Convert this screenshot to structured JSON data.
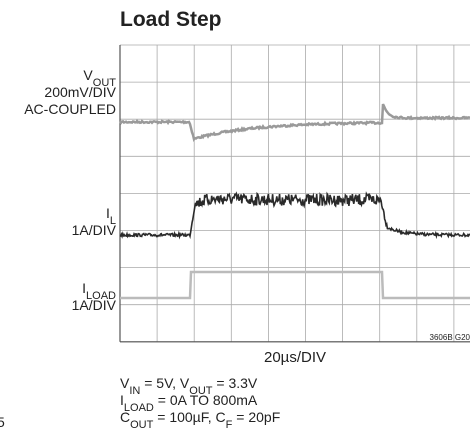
{
  "chart_data": {
    "type": "oscilloscope",
    "title": "Load Step",
    "channels": [
      {
        "name": {
          "main": "V",
          "sub": "OUT"
        },
        "scale": "200mV/DIV",
        "coupling": "AC-COUPLED"
      },
      {
        "name": {
          "main": "I",
          "sub": "L"
        },
        "scale": "1A/DIV"
      },
      {
        "name": {
          "main": "I",
          "sub": "LOAD"
        },
        "scale": "1A/DIV"
      }
    ],
    "x_label": "20µs/DIV",
    "figure_code": "3606B G20",
    "margin_text": "5",
    "conditions": [
      [
        "V",
        "IN",
        " = 5V, V",
        "OUT",
        " = 3.3V"
      ],
      [
        "I",
        "LOAD",
        " = 0A TO 800mA"
      ],
      [
        "C",
        "OUT",
        " = 100µF, C",
        "F",
        " = 20pF"
      ]
    ]
  }
}
